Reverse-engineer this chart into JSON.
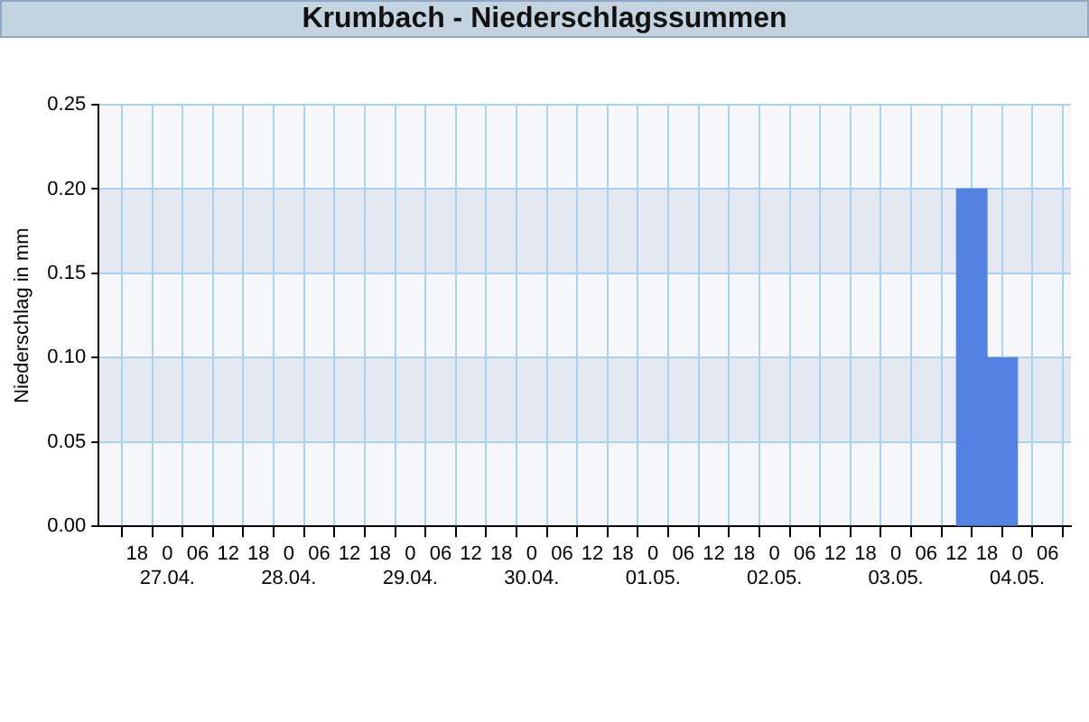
{
  "chart_data": {
    "type": "histogram",
    "title": "Krumbach - Niederschlagssummen",
    "ylabel": "Niederschlag in mm",
    "bins": [
      "--05-03T12:00",
      "--05-03T18:00",
      "--05-04T00:00"
    ],
    "values": [
      0.2,
      0.1
    ],
    "color": "#5282e2",
    "xlim": [
      "--04-26T13:30",
      "--05-04T07:30"
    ],
    "xticks": [
      {
        "value": "--04-26T18:00",
        "label": "18"
      },
      {
        "value": "--04-27T00:00",
        "label": "0\n27.04."
      },
      {
        "value": "--04-27T06:00",
        "label": "06"
      },
      {
        "value": "--04-27T12:00",
        "label": "12"
      },
      {
        "value": "--04-27T18:00",
        "label": "18"
      },
      {
        "value": "--04-28T00:00",
        "label": "0\n28.04."
      },
      {
        "value": "--04-28T06:00",
        "label": "06"
      },
      {
        "value": "--04-28T12:00",
        "label": "12"
      },
      {
        "value": "--04-28T18:00",
        "label": "18"
      },
      {
        "value": "--04-29T00:00",
        "label": "0\n29.04."
      },
      {
        "value": "--04-29T06:00",
        "label": "06"
      },
      {
        "value": "--04-29T12:00",
        "label": "12"
      },
      {
        "value": "--04-29T18:00",
        "label": "18"
      },
      {
        "value": "--04-30T00:00",
        "label": "0\n30.04."
      },
      {
        "value": "--04-30T06:00",
        "label": "06"
      },
      {
        "value": "--04-30T12:00",
        "label": "12"
      },
      {
        "value": "--04-30T18:00",
        "label": "18"
      },
      {
        "value": "--05-01T00:00",
        "label": "0\n01.05."
      },
      {
        "value": "--05-01T06:00",
        "label": "06"
      },
      {
        "value": "--05-01T12:00",
        "label": "12"
      },
      {
        "value": "--05-01T18:00",
        "label": "18"
      },
      {
        "value": "--05-02T00:00",
        "label": "0\n02.05."
      },
      {
        "value": "--05-02T06:00",
        "label": "06"
      },
      {
        "value": "--05-02T12:00",
        "label": "12"
      },
      {
        "value": "--05-02T18:00",
        "label": "18"
      },
      {
        "value": "--05-03T00:00",
        "label": "0\n03.05."
      },
      {
        "value": "--05-03T06:00",
        "label": "06"
      },
      {
        "value": "--05-03T12:00",
        "label": "12"
      },
      {
        "value": "--05-03T18:00",
        "label": "18"
      },
      {
        "value": "--05-04T00:00",
        "label": "0\n04.05."
      },
      {
        "value": "--05-04T06:00",
        "label": "06"
      }
    ],
    "ylim": [
      0,
      0.25
    ],
    "yticks": [
      {
        "value": 0,
        "label": "0.00"
      },
      0.05,
      {
        "value": 0.1,
        "label": "0.10"
      },
      0.15,
      {
        "value": 0.2,
        "label": "0.20"
      },
      0.25
    ],
    "grid": true,
    "legend": false
  }
}
